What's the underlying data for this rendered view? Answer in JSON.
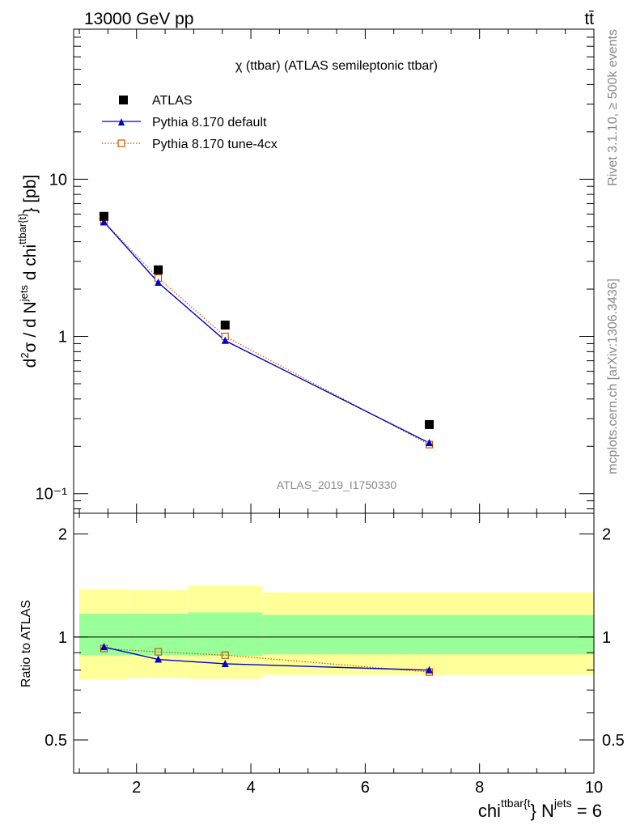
{
  "header": {
    "energy_label": "13000 GeV pp",
    "process_label": "tt̄"
  },
  "side_labels": {
    "rivet": "Rivet 3.1.10, ≥ 500k events",
    "mcplots": "mcplots.cern.ch [arXiv:1306.3436]"
  },
  "chart_data": [
    {
      "type": "line",
      "title": "χ (ttbar) (ATLAS semileptonic ttbar)",
      "watermark": "ATLAS_2019_I1750330",
      "ylabel": "d²σ / d N^jets d chi^{ttbar{t}} [pb]",
      "yscale": "log",
      "xlim": [
        0.9,
        10.0
      ],
      "ylim": [
        0.075,
        90
      ],
      "x_ticks": [
        2,
        4,
        6,
        8,
        10
      ],
      "y_tick_labels": [
        "10⁻¹",
        "1",
        "10"
      ],
      "legend_position": "top-left",
      "series": [
        {
          "name": "ATLAS",
          "marker": "square",
          "color": "#000000",
          "x": [
            1.43,
            2.38,
            3.55,
            7.12
          ],
          "y": [
            5.8,
            2.65,
            1.18,
            0.275
          ]
        },
        {
          "name": "Pythia 8.170 default",
          "marker": "triangle",
          "color": "#0000cc",
          "line": "solid",
          "x": [
            1.43,
            2.38,
            3.55,
            7.12
          ],
          "y": [
            5.35,
            2.2,
            0.94,
            0.21
          ]
        },
        {
          "name": "Pythia 8.170 tune-4cx",
          "marker": "open-square",
          "color": "#cc5500",
          "line": "dotted",
          "x": [
            1.43,
            2.38,
            3.55,
            7.12
          ],
          "y": [
            5.35,
            2.35,
            1.0,
            0.205
          ]
        }
      ]
    },
    {
      "type": "line",
      "ylabel": "Ratio to ATLAS",
      "xlabel": "chi^{ttbar{t}} N^jets = 6",
      "xlim": [
        0.9,
        10.0
      ],
      "ylim": [
        0.4,
        2.3
      ],
      "x_ticks": [
        2,
        4,
        6,
        8,
        10
      ],
      "y_ticks": [
        0.5,
        1,
        2
      ],
      "reference_line": 1,
      "bands": [
        {
          "x0": 1.0,
          "x1": 1.85,
          "yellow": [
            0.75,
            1.38
          ],
          "green": [
            0.885,
            1.17
          ]
        },
        {
          "x0": 1.85,
          "x1": 2.9,
          "yellow": [
            0.76,
            1.37
          ],
          "green": [
            0.885,
            1.17
          ]
        },
        {
          "x0": 2.9,
          "x1": 4.2,
          "yellow": [
            0.755,
            1.41
          ],
          "green": [
            0.88,
            1.18
          ]
        },
        {
          "x0": 4.2,
          "x1": 10.0,
          "yellow": [
            0.775,
            1.35
          ],
          "green": [
            0.89,
            1.16
          ]
        }
      ],
      "series": [
        {
          "name": "Pythia 8.170 default",
          "x": [
            1.43,
            2.38,
            3.55,
            7.12
          ],
          "y": [
            0.935,
            0.86,
            0.835,
            0.8
          ]
        },
        {
          "name": "Pythia 8.170 tune-4cx",
          "x": [
            1.43,
            2.38,
            3.55,
            7.12
          ],
          "y": [
            0.925,
            0.905,
            0.885,
            0.79
          ]
        }
      ]
    }
  ]
}
